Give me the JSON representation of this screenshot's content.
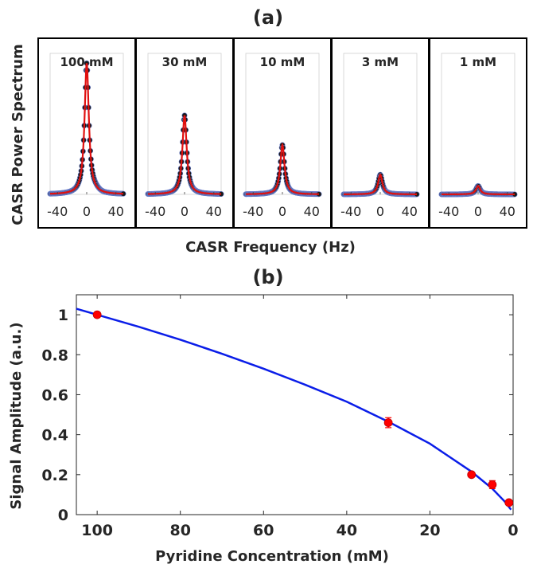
{
  "panel_a": {
    "label": "(a)",
    "ylabel": "CASR Power Spectrum",
    "xlabel": "CASR Frequency (Hz)"
  },
  "panel_b": {
    "label": "(b)"
  },
  "colors": {
    "data_markers": "#1a1a1a",
    "marker_edge": "#6a7fd0",
    "fit_line_a": "#e01010",
    "fit_line_b": "#0a1de8",
    "points_b": "#ff0000"
  },
  "chart_data": [
    {
      "type": "line",
      "panel": "(a)",
      "subplots": [
        {
          "title": "100 mM",
          "peak": 0.93
        },
        {
          "title": "30 mM",
          "peak": 0.56
        },
        {
          "title": "10 mM",
          "peak": 0.35
        },
        {
          "title": "3 mM",
          "peak": 0.14
        },
        {
          "title": "1 mM",
          "peak": 0.06
        }
      ],
      "xlabel": "CASR Frequency (Hz)",
      "ylabel": "CASR Power Spectrum",
      "xticks": [
        "-40",
        "0",
        "40"
      ],
      "xticks_values": [
        -40,
        0,
        40
      ],
      "xlim": [
        -50,
        50
      ],
      "ylim": [
        0,
        1
      ],
      "halfwidth_hz": 3.5
    },
    {
      "type": "scatter",
      "panel": "(b)",
      "xlabel": "Pyridine Concentration (mM)",
      "ylabel": "Signal Amplitude (a.u.)",
      "xlim": [
        105,
        0
      ],
      "ylim": [
        0,
        1.1
      ],
      "xticks": [
        100,
        80,
        60,
        40,
        20,
        0
      ],
      "yticks": [
        0,
        0.2,
        0.4,
        0.6,
        0.8,
        1
      ],
      "points": [
        {
          "x": 100,
          "y": 1.0,
          "err": 0.012
        },
        {
          "x": 30,
          "y": 0.46,
          "err": 0.025
        },
        {
          "x": 10,
          "y": 0.2,
          "err": 0.01
        },
        {
          "x": 5,
          "y": 0.15,
          "err": 0.02
        },
        {
          "x": 1,
          "y": 0.06,
          "err": 0.01
        }
      ],
      "fit": {
        "x": [
          105,
          100,
          90,
          80,
          70,
          60,
          50,
          40,
          30,
          20,
          15,
          10,
          5,
          2,
          0.5
        ],
        "y": [
          1.03,
          1.0,
          0.94,
          0.875,
          0.805,
          0.73,
          0.65,
          0.565,
          0.465,
          0.355,
          0.285,
          0.215,
          0.13,
          0.065,
          0.025
        ]
      }
    }
  ]
}
